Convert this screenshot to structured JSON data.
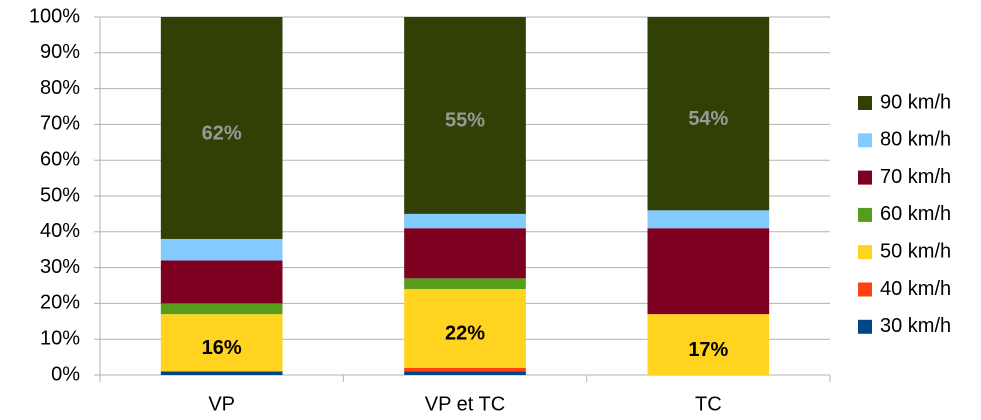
{
  "chart_data": {
    "type": "stacked_bar",
    "categories": [
      "VP",
      "VP et TC",
      "TC"
    ],
    "series": [
      {
        "name": "30 km/h",
        "color": "#004586",
        "values": [
          1,
          1,
          0
        ]
      },
      {
        "name": "40 km/h",
        "color": "#ff420e",
        "values": [
          0,
          1,
          0
        ]
      },
      {
        "name": "50 km/h",
        "color": "#ffd320",
        "values": [
          16,
          22,
          17
        ],
        "value_labels": [
          "16%",
          "22%",
          "17%"
        ],
        "label_color": "#000000"
      },
      {
        "name": "60 km/h",
        "color": "#579d1c",
        "values": [
          3,
          3,
          0
        ]
      },
      {
        "name": "70 km/h",
        "color": "#7e0021",
        "values": [
          12,
          14,
          24
        ]
      },
      {
        "name": "80 km/h",
        "color": "#83caff",
        "values": [
          6,
          4,
          5
        ]
      },
      {
        "name": "90 km/h",
        "color": "#314004",
        "values": [
          62,
          55,
          54
        ],
        "value_labels": [
          "62%",
          "55%",
          "54%"
        ],
        "label_color": "#999999"
      }
    ],
    "ylim": [
      0,
      100
    ],
    "yticks": [
      {
        "value": 0,
        "label": "0%"
      },
      {
        "value": 10,
        "label": "10%"
      },
      {
        "value": 20,
        "label": "20%"
      },
      {
        "value": 30,
        "label": "30%"
      },
      {
        "value": 40,
        "label": "40%"
      },
      {
        "value": 50,
        "label": "50%"
      },
      {
        "value": 60,
        "label": "60%"
      },
      {
        "value": 70,
        "label": "70%"
      },
      {
        "value": 80,
        "label": "80%"
      },
      {
        "value": 90,
        "label": "90%"
      },
      {
        "value": 100,
        "label": "100%"
      }
    ],
    "grid": true,
    "legend": "right"
  }
}
